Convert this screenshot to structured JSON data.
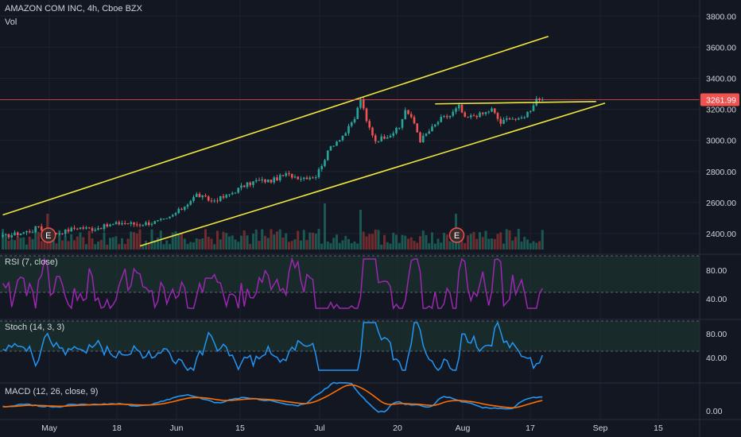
{
  "header": {
    "title": "AMAZON COM INC, 4h, Cboe BZX",
    "vol_label": "Vol"
  },
  "price_tag": "3261.99",
  "panes": {
    "rsi_label": "RSI (7, close)",
    "stoch_label": "Stoch (14, 3, 3)",
    "macd_label": "MACD (12, 26, close, 9)"
  },
  "earnings_marker": "E",
  "colors": {
    "background": "#131722",
    "up": "#26a69a",
    "down": "#ef5350",
    "trendline": "#f0e63c",
    "rsi": "#9c27b0",
    "stoch": "#2196f3",
    "macd": "#2196f3",
    "signal": "#ff6d00",
    "pane_band": "#1f3a33"
  },
  "chart_data": [
    {
      "type": "candlestick",
      "title": "AMAZON COM INC, 4h, Cboe BZX",
      "ylim": [
        2320,
        3880
      ],
      "y_ticks": [
        "3800.00",
        "3600.00",
        "3400.00",
        "3200.00",
        "3000.00",
        "2800.00",
        "2600.00",
        "2400.00"
      ],
      "x_ticks": [
        "May",
        "18",
        "Jun",
        "15",
        "Jul",
        "20",
        "Aug",
        "17",
        "Sep",
        "15"
      ],
      "price_path": [
        [
          0,
          2380
        ],
        [
          5,
          2400
        ],
        [
          10,
          2420
        ],
        [
          12,
          2450
        ],
        [
          15,
          2390
        ],
        [
          20,
          2410
        ],
        [
          25,
          2440
        ],
        [
          30,
          2430
        ],
        [
          35,
          2450
        ],
        [
          40,
          2470
        ],
        [
          45,
          2460
        ],
        [
          50,
          2470
        ],
        [
          55,
          2490
        ],
        [
          60,
          2560
        ],
        [
          65,
          2650
        ],
        [
          70,
          2610
        ],
        [
          75,
          2640
        ],
        [
          80,
          2700
        ],
        [
          85,
          2740
        ],
        [
          90,
          2740
        ],
        [
          95,
          2780
        ],
        [
          100,
          2760
        ],
        [
          105,
          2770
        ],
        [
          110,
          2960
        ],
        [
          115,
          3050
        ],
        [
          118,
          3140
        ],
        [
          120,
          3270
        ],
        [
          122,
          3120
        ],
        [
          125,
          3000
        ],
        [
          130,
          3040
        ],
        [
          133,
          3080
        ],
        [
          135,
          3200
        ],
        [
          138,
          3110
        ],
        [
          140,
          3000
        ],
        [
          143,
          3060
        ],
        [
          147,
          3140
        ],
        [
          150,
          3160
        ],
        [
          153,
          3220
        ],
        [
          155,
          3140
        ],
        [
          158,
          3160
        ],
        [
          161,
          3170
        ],
        [
          164,
          3200
        ],
        [
          167,
          3110
        ],
        [
          170,
          3150
        ],
        [
          173,
          3130
        ],
        [
          175,
          3160
        ],
        [
          177,
          3200
        ],
        [
          179,
          3270
        ],
        [
          181,
          3262
        ]
      ],
      "n_candles": 182,
      "earnings_candles": [
        15,
        152
      ],
      "trendlines": [
        {
          "from": [
            0,
            2520
          ],
          "to": [
            183,
            3670
          ]
        },
        {
          "from": [
            46,
            2320
          ],
          "to": [
            202,
            3240
          ]
        },
        {
          "from": [
            145,
            3235
          ],
          "to": [
            199,
            3250
          ]
        }
      ]
    },
    {
      "type": "line",
      "name": "RSI (7, close)",
      "ylim": [
        20,
        100
      ],
      "y_ticks": [
        "80.00",
        "40.00"
      ],
      "band": [
        30,
        70
      ]
    },
    {
      "type": "line",
      "name": "Stoch (14, 3, 3)",
      "ylim": [
        0,
        100
      ],
      "y_ticks": [
        "80.00",
        "40.00"
      ],
      "band": [
        20,
        80
      ]
    },
    {
      "type": "line",
      "name": "MACD (12, 26, close, 9)",
      "y_ticks": [
        "0.00"
      ]
    }
  ]
}
